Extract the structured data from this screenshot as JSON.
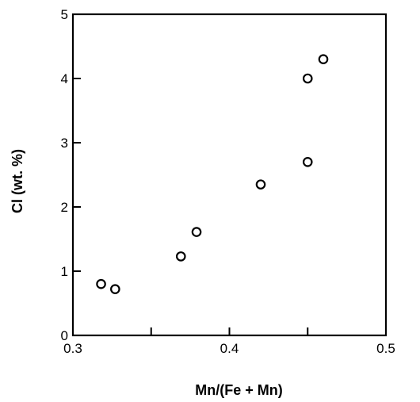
{
  "chart_data": {
    "type": "scatter",
    "title": "",
    "xlabel": "Mn/(Fe + Mn)",
    "ylabel": "Cl  (wt. %)",
    "xlim": [
      0.3,
      0.5
    ],
    "ylim": [
      0,
      5
    ],
    "x_ticks": [
      0.3,
      0.4,
      0.5
    ],
    "x_tick_labels": [
      "0.3",
      "0.4",
      "0.5"
    ],
    "x_minor_ticks": [
      0.35,
      0.45
    ],
    "y_ticks": [
      0,
      1,
      2,
      3,
      4,
      5
    ],
    "y_tick_labels": [
      "0",
      "1",
      "2",
      "3",
      "4",
      "5"
    ],
    "grid": false,
    "marker": "open-circle",
    "marker_color": "#000000",
    "points": [
      {
        "x": 0.318,
        "y": 0.8
      },
      {
        "x": 0.327,
        "y": 0.72
      },
      {
        "x": 0.369,
        "y": 1.23
      },
      {
        "x": 0.379,
        "y": 1.61
      },
      {
        "x": 0.42,
        "y": 2.35
      },
      {
        "x": 0.45,
        "y": 2.7
      },
      {
        "x": 0.45,
        "y": 4.0
      },
      {
        "x": 0.46,
        "y": 4.3
      }
    ]
  }
}
